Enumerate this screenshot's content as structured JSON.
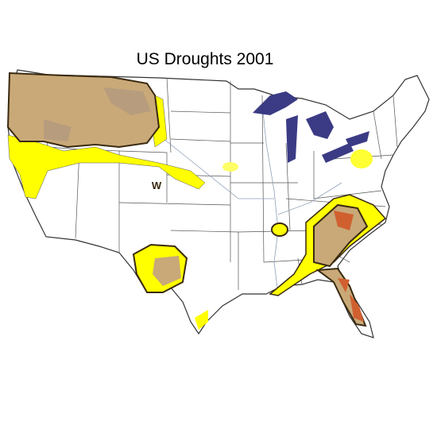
{
  "map": {
    "title": "US Droughts 2001",
    "region_label": "W"
  }
}
